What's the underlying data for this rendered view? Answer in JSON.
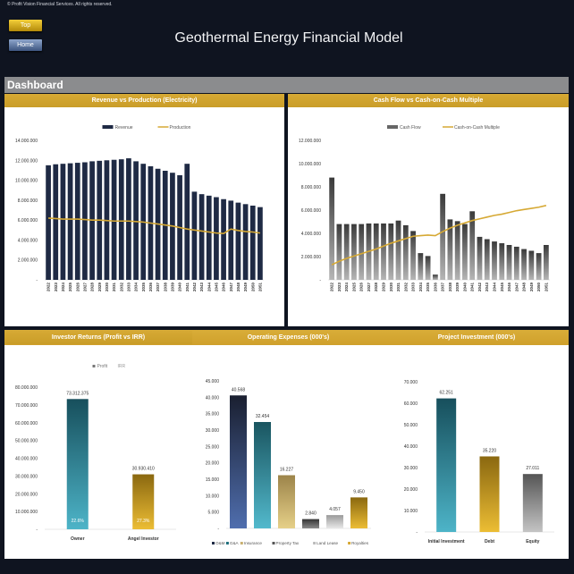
{
  "header": {
    "copyright": "© Profit Vision Financial Services. All rights reserved.",
    "title": "Geothermal Energy Financial Model",
    "top_button": "Top",
    "home_button": "Home"
  },
  "section": {
    "title": "Dashboard"
  },
  "colors": {
    "background": "#0f1420",
    "accent_gold": "#d6a934",
    "navy": "#1f2a44",
    "section_gray": "#8b8c8e"
  },
  "chart_data": [
    {
      "type": "bar+line",
      "title": "Revenue vs Production (Electricity)",
      "legend_position": "top",
      "ylim": [
        0,
        14000000
      ],
      "yticks": [
        "-",
        "2.000.000",
        "4.000.000",
        "6.000.000",
        "8.000.000",
        "10.000.000",
        "12.000.000",
        "14.000.000"
      ],
      "categories": [
        "2022",
        "2023",
        "2024",
        "2025",
        "2026",
        "2027",
        "2028",
        "2029",
        "2030",
        "2031",
        "2032",
        "2033",
        "2034",
        "2035",
        "2036",
        "2037",
        "2038",
        "2039",
        "2040",
        "2041",
        "2042",
        "2043",
        "2044",
        "2045",
        "2046",
        "2047",
        "2048",
        "2049",
        "2050",
        "2051"
      ],
      "series": [
        {
          "name": "Revenue",
          "type": "bar",
          "color": "#1f2a44",
          "values": [
            11500000,
            11600000,
            11650000,
            11700000,
            11750000,
            11800000,
            11900000,
            11950000,
            12000000,
            12050000,
            12100000,
            12200000,
            11900000,
            11650000,
            11400000,
            11150000,
            10950000,
            10750000,
            10500000,
            11650000,
            8850000,
            8600000,
            8450000,
            8300000,
            8100000,
            7950000,
            7750000,
            7600000,
            7450000,
            7300000
          ]
        },
        {
          "name": "Production",
          "type": "line",
          "color": "#d6a934",
          "values": [
            6200000,
            6150000,
            6100000,
            6100000,
            6100000,
            6050000,
            6000000,
            6000000,
            5950000,
            5900000,
            5900000,
            5900000,
            5850000,
            5800000,
            5700000,
            5600000,
            5500000,
            5400000,
            5250000,
            5100000,
            5000000,
            4900000,
            4800000,
            4700000,
            4650000,
            5100000,
            4950000,
            4850000,
            4800000,
            4700000
          ]
        }
      ]
    },
    {
      "type": "bar+line",
      "title": "Cash Flow vs Cash-on-Cash Multiple",
      "legend_position": "top",
      "ylim": [
        0,
        12000000
      ],
      "yticks": [
        "-",
        "2.000.000",
        "4.000.000",
        "6.000.000",
        "8.000.000",
        "10.000.000",
        "12.000.000"
      ],
      "categories": [
        "2022",
        "2023",
        "2024",
        "2025",
        "2026",
        "2027",
        "2028",
        "2029",
        "2030",
        "2031",
        "2032",
        "2033",
        "2034",
        "2035",
        "2036",
        "2037",
        "2038",
        "2039",
        "2040",
        "2041",
        "2042",
        "2043",
        "2044",
        "2045",
        "2046",
        "2047",
        "2048",
        "2049",
        "2050",
        "2051"
      ],
      "series": [
        {
          "name": "Cash Flow",
          "type": "bar",
          "color": "#6b6b6b",
          "values": [
            8800000,
            4800000,
            4800000,
            4800000,
            4800000,
            4850000,
            4850000,
            4850000,
            4850000,
            5100000,
            4700000,
            4200000,
            2300000,
            2050000,
            450000,
            7400000,
            5200000,
            5050000,
            4800000,
            5900000,
            3700000,
            3500000,
            3300000,
            3150000,
            3000000,
            2850000,
            2650000,
            2500000,
            2300000,
            3000000
          ]
        },
        {
          "name": "Cash-on-Cash Multiple",
          "type": "line",
          "color": "#d6a934",
          "values": [
            1300000,
            1600000,
            1850000,
            2050000,
            2250000,
            2450000,
            2650000,
            2900000,
            3150000,
            3350000,
            3550000,
            3750000,
            3800000,
            3850000,
            3800000,
            4150000,
            4450000,
            4700000,
            4900000,
            5100000,
            5250000,
            5400000,
            5550000,
            5650000,
            5800000,
            5950000,
            6050000,
            6150000,
            6250000,
            6400000
          ]
        }
      ]
    },
    {
      "type": "bar",
      "title": "Investor Returns (Profit vs IRR)",
      "legend_position": "top",
      "legend": [
        "Profit",
        "IRR"
      ],
      "ylim": [
        0,
        80000000
      ],
      "yticks": [
        "-",
        "10.000.000",
        "20.000.000",
        "30.000.000",
        "40.000.000",
        "50.000.000",
        "60.000.000",
        "70.000.000",
        "80.000.000"
      ],
      "categories": [
        "Owner",
        "Angel Investor"
      ],
      "values": [
        73312375,
        30930410
      ],
      "data_labels": [
        "73.312.375",
        "30.930.410"
      ],
      "irr_labels": [
        "22.6%",
        "27.3%"
      ]
    },
    {
      "type": "bar",
      "title": "Operating Expenses (000's)",
      "legend_position": "bottom",
      "ylim": [
        0,
        45000
      ],
      "yticks": [
        "-",
        "5.000",
        "10.000",
        "15.000",
        "20.000",
        "25.000",
        "30.000",
        "35.000",
        "40.000",
        "45.000"
      ],
      "categories": [
        "O&M",
        "G&A",
        "Insurance",
        "Property Tax",
        "Land Lease",
        "Royalties"
      ],
      "values": [
        40568,
        32454,
        16227,
        2840,
        4057,
        9450
      ],
      "data_labels": [
        "40.568",
        "32.454",
        "16.227",
        "2.840",
        "4.057",
        "9.450"
      ]
    },
    {
      "type": "bar",
      "title": "Project Investment (000's)",
      "legend_position": "none",
      "ylim": [
        0,
        70000
      ],
      "yticks": [
        "-",
        "10.000",
        "20.000",
        "30.000",
        "40.000",
        "50.000",
        "60.000",
        "70.000"
      ],
      "categories": [
        "Initial Investment",
        "Debt",
        "Equity"
      ],
      "values": [
        62251,
        35220,
        27011
      ],
      "data_labels": [
        "62.251",
        "35.220",
        "27.011"
      ]
    }
  ]
}
